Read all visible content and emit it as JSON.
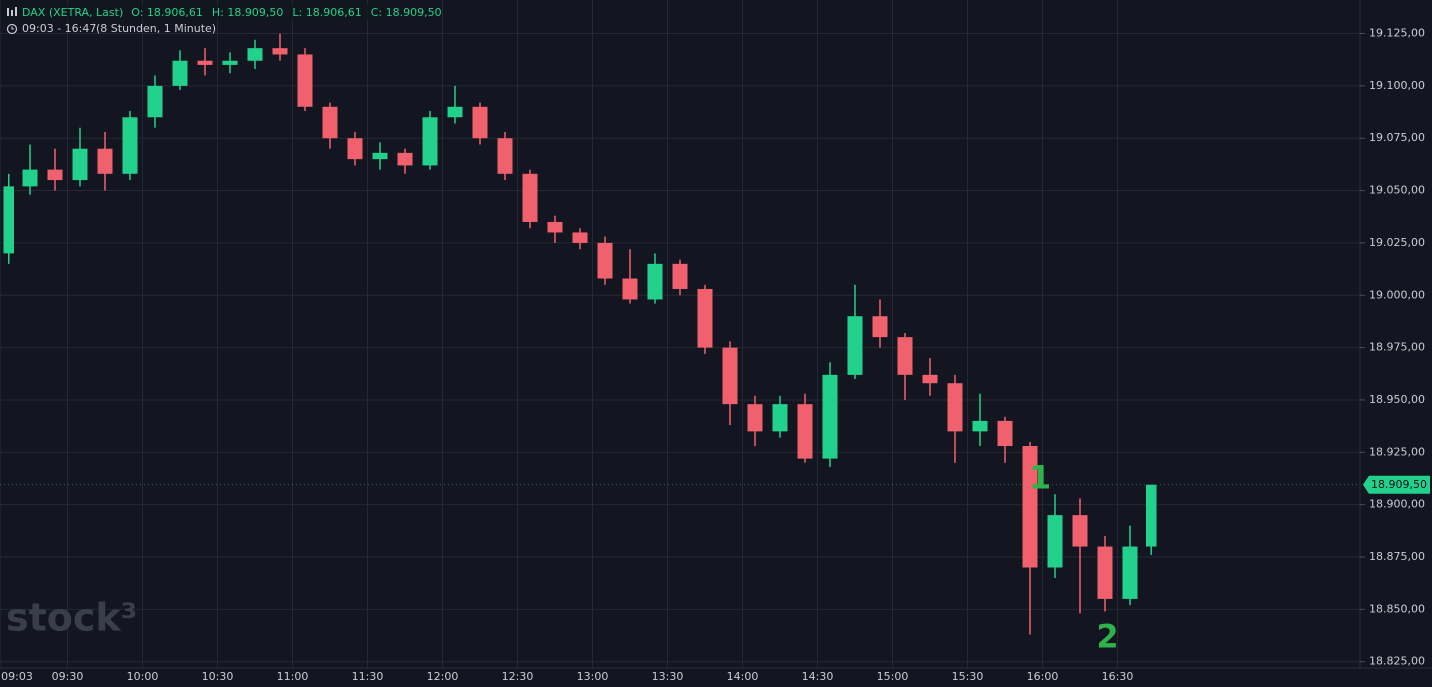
{
  "chart_data": {
    "type": "candlestick",
    "title": "DAX (XETRA, Last)",
    "ohlc_header": [
      "O: 18.906,61",
      "H: 18.909,50",
      "L: 18.906,61",
      "C: 18.909,50"
    ],
    "subtitle": "09:03 - 16:47",
    "subtitle_note": "(8 Stunden, 1 Minute)",
    "watermark": "stock³",
    "x": [
      "09:03",
      "09:10",
      "09:20",
      "09:30",
      "09:40",
      "09:50",
      "10:00",
      "10:10",
      "10:20",
      "10:30",
      "10:40",
      "10:50",
      "11:00",
      "11:10",
      "11:20",
      "11:30",
      "11:40",
      "11:50",
      "12:00",
      "12:10",
      "12:20",
      "12:30",
      "12:40",
      "12:50",
      "13:00",
      "13:10",
      "13:20",
      "13:30",
      "13:40",
      "13:50",
      "14:00",
      "14:10",
      "14:20",
      "14:30",
      "14:40",
      "14:50",
      "15:00",
      "15:10",
      "15:20",
      "15:30",
      "15:40",
      "15:50",
      "16:00",
      "16:10",
      "16:20",
      "16:30",
      "16:40"
    ],
    "open": [
      19020,
      19052,
      19060,
      19055,
      19070,
      19058,
      19085,
      19100,
      19112,
      19110,
      19112,
      19118,
      19115,
      19090,
      19075,
      19065,
      19068,
      19062,
      19085,
      19090,
      19075,
      19058,
      19035,
      19030,
      19025,
      19008,
      18998,
      19015,
      19003,
      18975,
      18948,
      18935,
      18948,
      18922,
      18962,
      18990,
      18980,
      18962,
      18958,
      18935,
      18940,
      18928,
      18870,
      18895,
      18880,
      18855,
      18880
    ],
    "high": [
      19058,
      19072,
      19070,
      19080,
      19078,
      19088,
      19105,
      19117,
      19118,
      19116,
      19122,
      19125,
      19118,
      19092,
      19078,
      19073,
      19070,
      19088,
      19100,
      19092,
      19078,
      19060,
      19038,
      19032,
      19028,
      19022,
      19020,
      19017,
      19005,
      18978,
      18952,
      18952,
      18953,
      18968,
      19005,
      18998,
      18982,
      18970,
      18962,
      18953,
      18942,
      18930,
      18905,
      18903,
      18885,
      18890,
      18909.5
    ],
    "low": [
      19015,
      19048,
      19050,
      19052,
      19050,
      19055,
      19080,
      19098,
      19105,
      19106,
      19108,
      19112,
      19088,
      19070,
      19062,
      19060,
      19058,
      19060,
      19082,
      19072,
      19055,
      19032,
      19025,
      19022,
      19005,
      18996,
      18996,
      19000,
      18972,
      18938,
      18928,
      18932,
      18920,
      18918,
      18960,
      18975,
      18950,
      18952,
      18920,
      18928,
      18920,
      18838,
      18865,
      18848,
      18849,
      18852,
      18876
    ],
    "close": [
      19052,
      19060,
      19055,
      19070,
      19058,
      19085,
      19100,
      19112,
      19110,
      19112,
      19118,
      19115,
      19090,
      19075,
      19065,
      19068,
      19062,
      19085,
      19090,
      19075,
      19058,
      19035,
      19030,
      19025,
      19008,
      18998,
      19015,
      19003,
      18975,
      18948,
      18935,
      18948,
      18922,
      18962,
      18990,
      18980,
      18962,
      18958,
      18935,
      18940,
      18928,
      18870,
      18895,
      18880,
      18855,
      18880,
      18909.5
    ],
    "up_color": "#22d18b",
    "down_color": "#f0616d",
    "xlim": [
      "09:03",
      "18:07"
    ],
    "xticks": [
      "09:03",
      "09:30",
      "10:00",
      "10:30",
      "11:00",
      "11:30",
      "12:00",
      "12:30",
      "13:00",
      "13:30",
      "14:00",
      "14:30",
      "15:00",
      "15:30",
      "16:00",
      "16:30"
    ],
    "ylim": [
      18822,
      19141
    ],
    "yticks": [
      {
        "value": 18825,
        "label": "18.825,00"
      },
      {
        "value": 18850,
        "label": "18.850,00"
      },
      {
        "value": 18875,
        "label": "18.875,00"
      },
      {
        "value": 18900,
        "label": "18.900,00"
      },
      {
        "value": 18925,
        "label": "18.925,00"
      },
      {
        "value": 18950,
        "label": "18.950,00"
      },
      {
        "value": 18975,
        "label": "18.975,00"
      },
      {
        "value": 19000,
        "label": "19.000,00"
      },
      {
        "value": 19025,
        "label": "19.025,00"
      },
      {
        "value": 19050,
        "label": "19.050,00"
      },
      {
        "value": 19075,
        "label": "19.075,00"
      },
      {
        "value": 19100,
        "label": "19.100,00"
      },
      {
        "value": 19125,
        "label": "19.125,00"
      }
    ],
    "last_price": {
      "value": 18909.5,
      "label": "18.909,50"
    },
    "grid": true,
    "annotations": [
      {
        "text": "1",
        "x": "15:59",
        "y": 18912
      },
      {
        "text": "2",
        "x": "16:26",
        "y": 18836
      }
    ]
  }
}
